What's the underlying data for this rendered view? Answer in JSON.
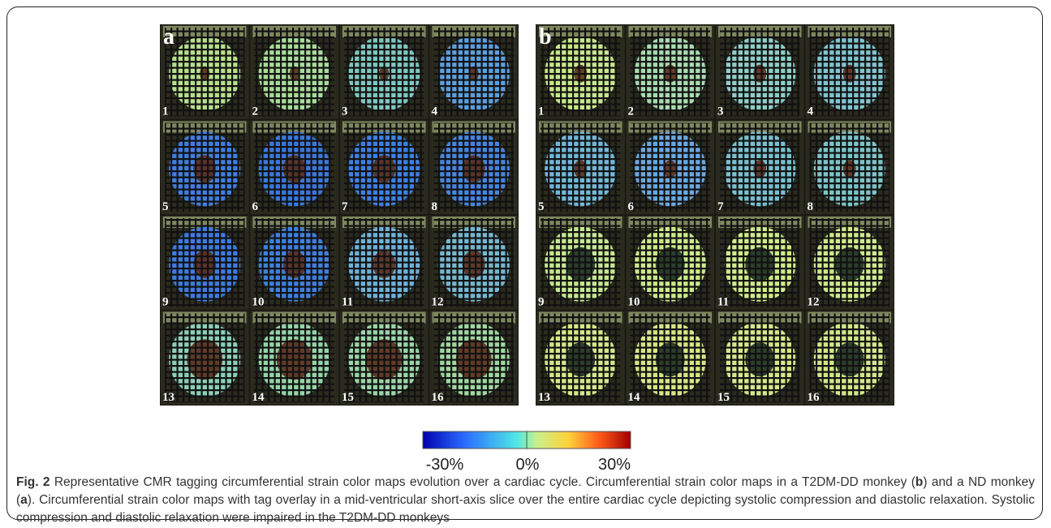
{
  "panels": [
    {
      "label": "a",
      "frames": [
        "1",
        "2",
        "3",
        "4",
        "5",
        "6",
        "7",
        "8",
        "9",
        "10",
        "11",
        "12",
        "13",
        "14",
        "15",
        "16"
      ]
    },
    {
      "label": "b",
      "frames": [
        "1",
        "2",
        "3",
        "4",
        "5",
        "6",
        "7",
        "8",
        "9",
        "10",
        "11",
        "12",
        "13",
        "14",
        "15",
        "16"
      ]
    }
  ],
  "colorbar": {
    "labels": [
      "-30%",
      "0%",
      "30%"
    ]
  },
  "caption": {
    "parts": [
      "Fig. 2",
      " Representative CMR tagging circumferential strain color maps evolution over a cardiac cycle. Circumferential strain color maps in a T2DM-DD monkey (",
      "b",
      ") and a ND monkey (",
      "a",
      "). Circumferential strain color maps with tag overlay in a mid-ventricular short-axis slice over the entire cardiac cycle depicting systolic compression and diastolic relaxation. Systolic compression and diastolic relaxation were impaired in the T2DM-DD monkeys"
    ]
  }
}
